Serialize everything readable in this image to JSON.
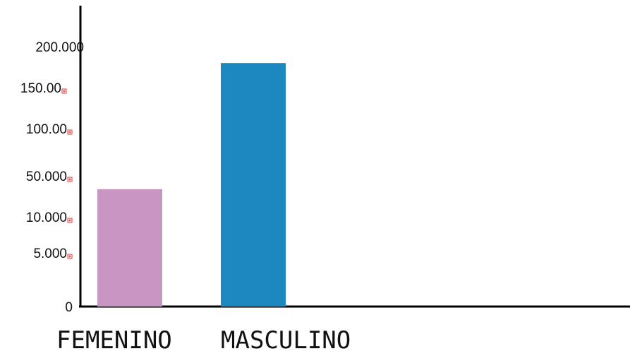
{
  "chart_data": {
    "type": "bar",
    "title": "",
    "xlabel": "",
    "ylabel": "",
    "categories": [
      "FEMENINO",
      "MASCULINO"
    ],
    "values": [
      37000,
      180000
    ],
    "colors": [
      "#c996c4",
      "#1d87c0"
    ],
    "y_ticks": [
      {
        "label": "0",
        "clipped": false
      },
      {
        "label": "5.000",
        "clipped": true
      },
      {
        "label": "10.000",
        "clipped": true
      },
      {
        "label": "50.000",
        "clipped": true
      },
      {
        "label": "100.00",
        "clipped": true
      },
      {
        "label": "150.00",
        "clipped": true
      },
      {
        "label": "200.000",
        "clipped": false
      }
    ],
    "grid": false,
    "legend": "none"
  }
}
